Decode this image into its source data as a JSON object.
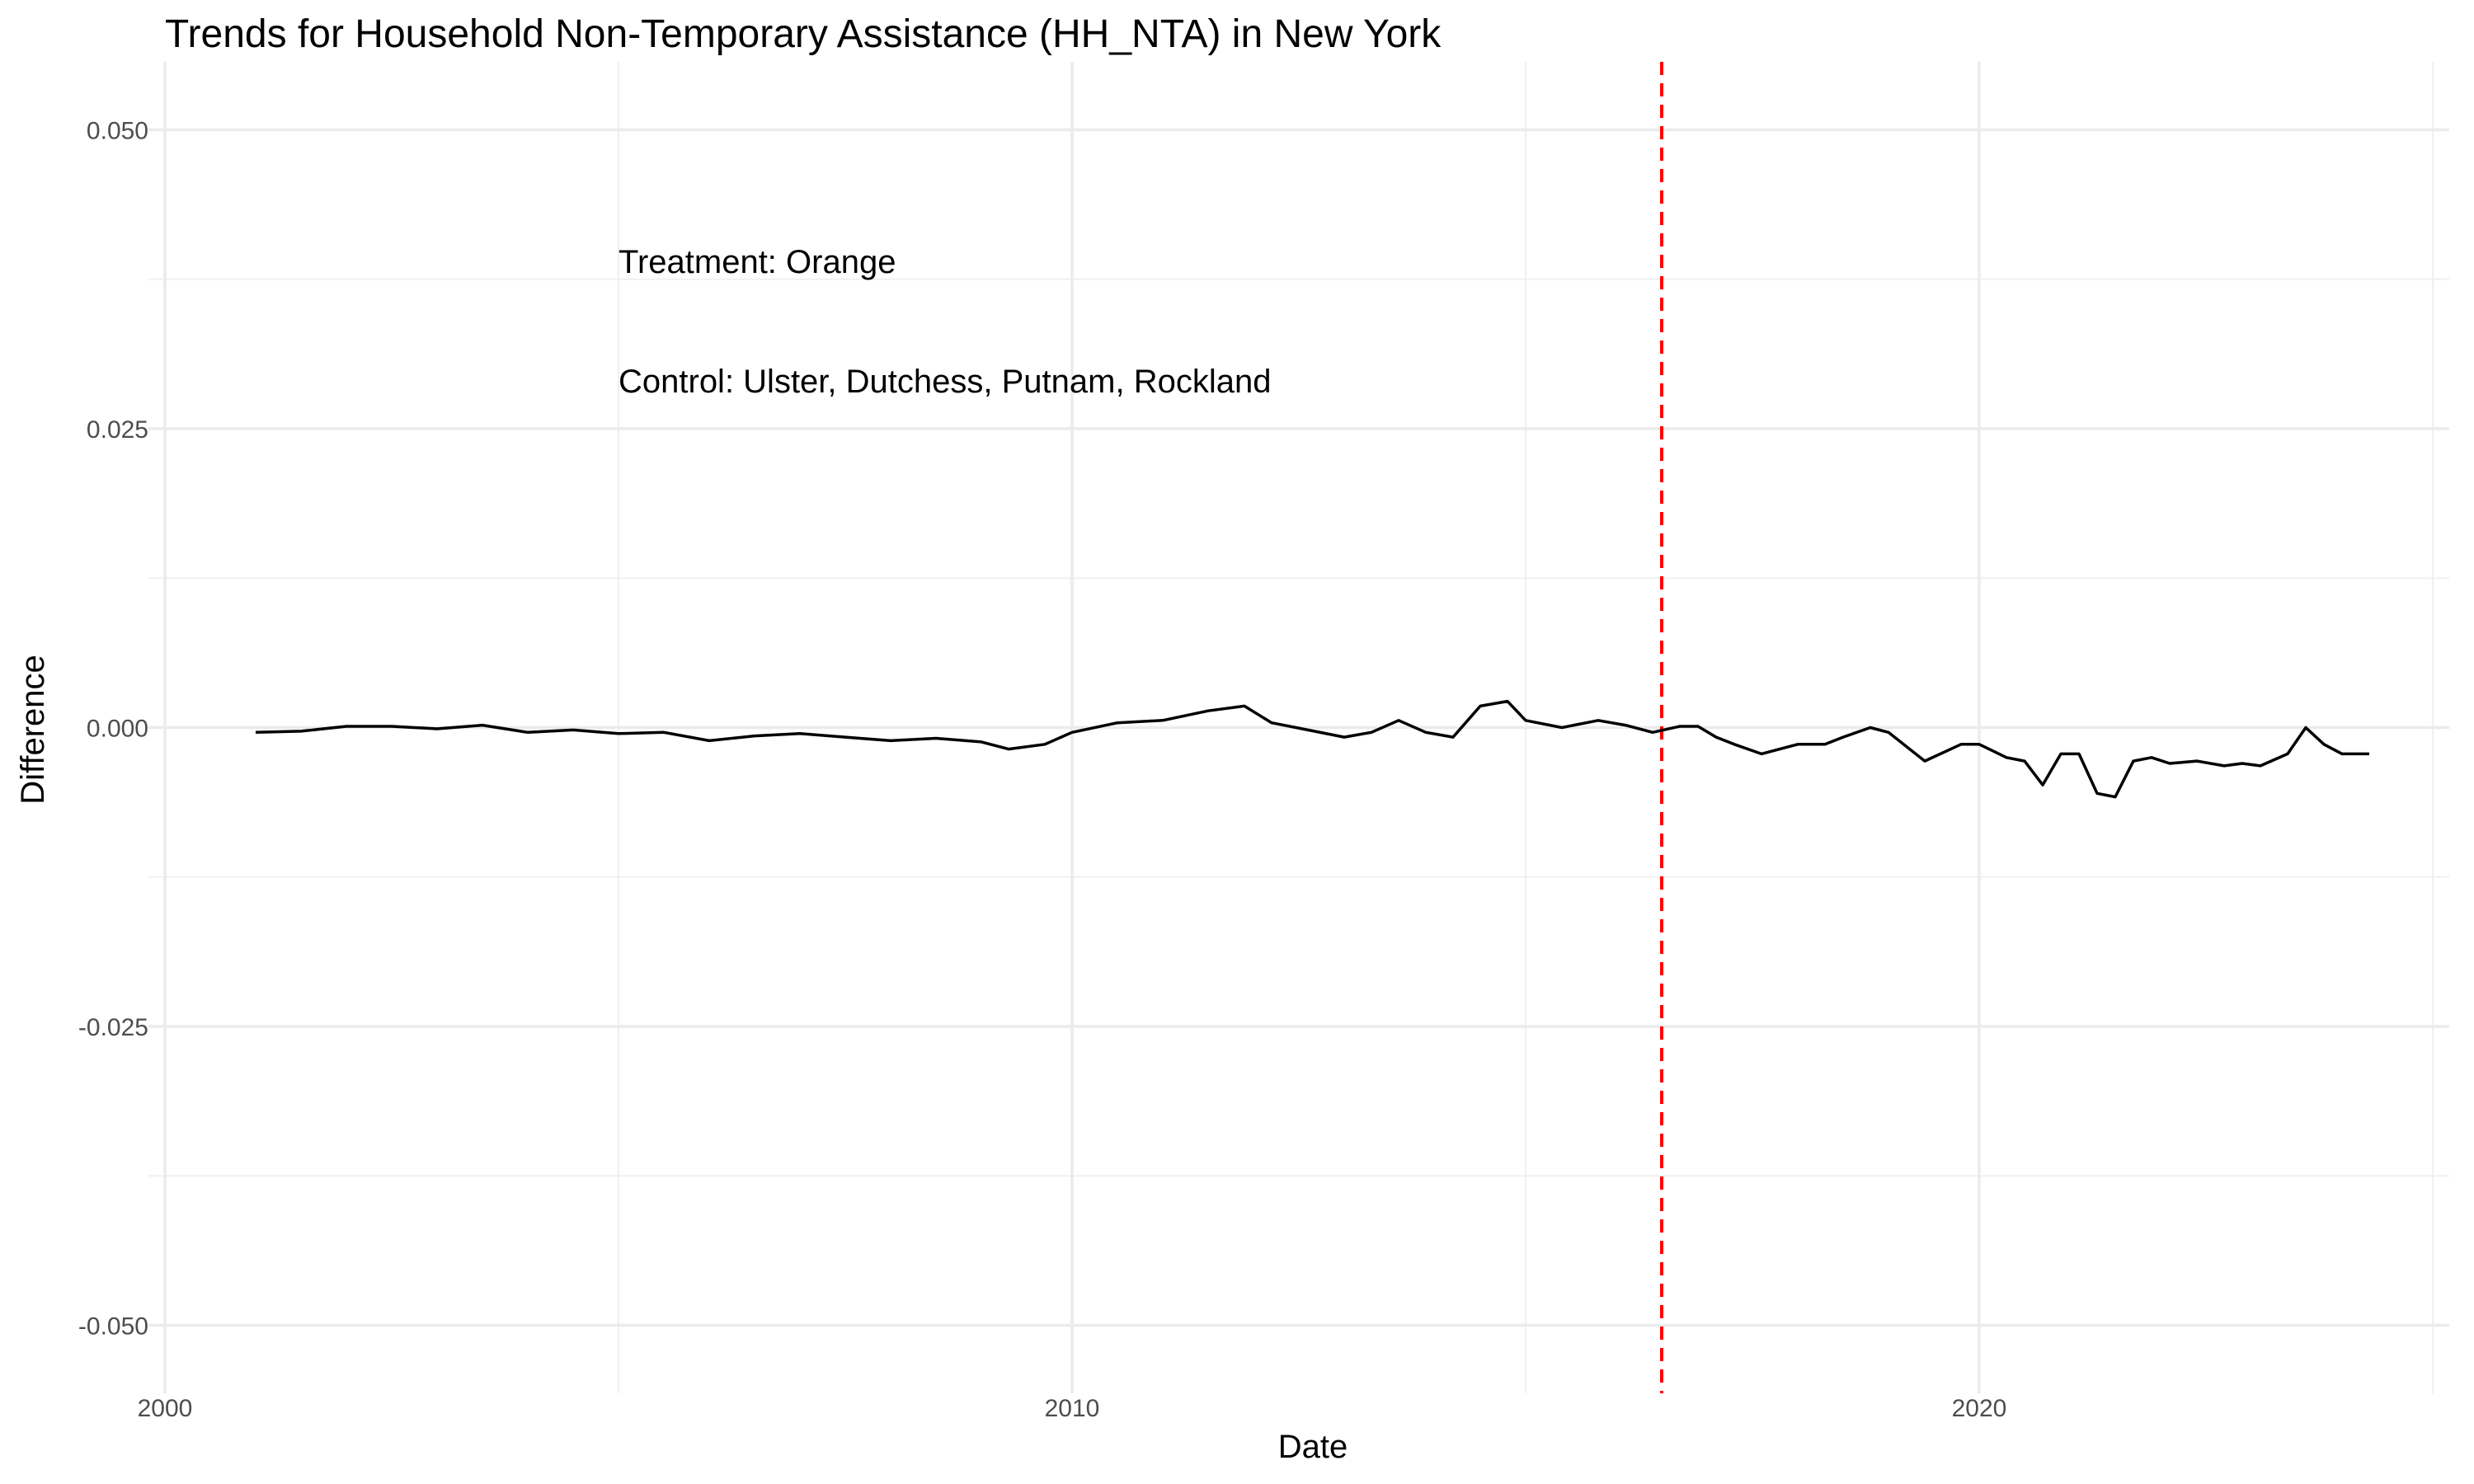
{
  "chart_data": {
    "type": "line",
    "title": "Trends for Household Non-Temporary Assistance (HH_NTA) in New York",
    "xlabel": "Date",
    "ylabel": "Difference",
    "xlim": [
      2000,
      2025
    ],
    "ylim": [
      -0.055,
      0.055
    ],
    "x_ticks": [
      2000,
      2010,
      2020
    ],
    "x_tick_labels": [
      "2000",
      "2010",
      "2020"
    ],
    "y_ticks": [
      -0.05,
      -0.025,
      0.0,
      0.025,
      0.05
    ],
    "y_tick_labels": [
      "-0.050",
      "-0.025",
      "0.000",
      "0.025",
      "0.050"
    ],
    "grid": true,
    "annotations": [
      "Treatment: Orange",
      "Control: Ulster, Dutchess, Putnam, Rockland"
    ],
    "reference_line": {
      "x": 2016.5,
      "style": "dashed",
      "color": "#ff0000"
    },
    "line_color": "#000000",
    "series": [
      {
        "x": [
          2001.0,
          2001.5,
          2002.0,
          2002.5,
          2003.0,
          2003.5,
          2004.0,
          2004.5,
          2005.0,
          2005.5,
          2006.0,
          2006.5,
          2007.0,
          2007.5,
          2008.0,
          2008.5,
          2009.0,
          2009.3,
          2009.7,
          2010.0,
          2010.5,
          2011.0,
          2011.5,
          2011.9,
          2012.2,
          2012.6,
          2013.0,
          2013.3,
          2013.6,
          2013.9,
          2014.2,
          2014.5,
          2014.8,
          2015.0,
          2015.4,
          2015.8,
          2016.1,
          2016.4,
          2016.7,
          2016.9,
          2017.1,
          2017.3,
          2017.6,
          2018.0,
          2018.3,
          2018.5,
          2018.8,
          2019.0,
          2019.4,
          2019.8,
          2020.0,
          2020.3,
          2020.5,
          2020.7,
          2020.9,
          2021.1,
          2021.3,
          2021.5,
          2021.7,
          2021.9,
          2022.1,
          2022.4,
          2022.7,
          2022.9,
          2023.1,
          2023.4,
          2023.6,
          2023.8,
          2024.0,
          2024.3
        ],
        "values": [
          -0.0004,
          -0.0003,
          0.0001,
          0.0001,
          -0.0001,
          0.0002,
          -0.0004,
          -0.0002,
          -0.0005,
          -0.0004,
          -0.0011,
          -0.0007,
          -0.0005,
          -0.0008,
          -0.0011,
          -0.0009,
          -0.0012,
          -0.0018,
          -0.0014,
          -0.0004,
          0.0004,
          0.0006,
          0.0014,
          0.0018,
          0.0004,
          -0.0002,
          -0.0008,
          -0.0004,
          0.0006,
          -0.0004,
          -0.0008,
          0.0018,
          0.0022,
          0.0006,
          0.0,
          0.0006,
          0.0002,
          -0.0004,
          0.0001,
          0.0001,
          -0.0008,
          -0.0014,
          -0.0022,
          -0.0014,
          -0.0014,
          -0.0008,
          0.0,
          -0.0004,
          -0.0028,
          -0.0014,
          -0.0014,
          -0.0025,
          -0.0028,
          -0.0048,
          -0.0022,
          -0.0022,
          -0.0055,
          -0.0058,
          -0.0028,
          -0.0025,
          -0.003,
          -0.0028,
          -0.0032,
          -0.003,
          -0.0032,
          -0.0022,
          0.0,
          -0.0014,
          -0.0022,
          -0.0022
        ]
      }
    ]
  }
}
